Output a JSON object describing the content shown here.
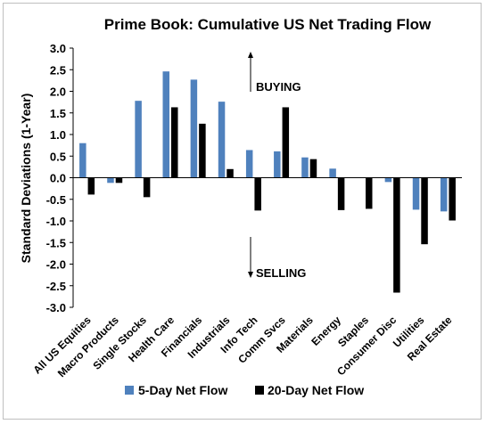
{
  "chart_data": {
    "type": "bar",
    "title": "Prime Book: Cumulative US Net Trading Flow",
    "ylabel": "Standard Deviations (1-Year)",
    "xlabel": "",
    "ylim": [
      -3.0,
      3.0
    ],
    "yticks": [
      "3.0",
      "2.5",
      "2.0",
      "1.5",
      "1.0",
      "0.5",
      "0.0",
      "-0.5",
      "-1.0",
      "-1.5",
      "-2.0",
      "-2.5",
      "-3.0"
    ],
    "categories": [
      "All US Equities",
      "Macro Products",
      "Single Stocks",
      "Health Care",
      "Financials",
      "Industrials",
      "Info Tech",
      "Comm Svcs",
      "Materials",
      "Energy",
      "Staples",
      "Consumer Disc",
      "Utilities",
      "Real Estate"
    ],
    "series": [
      {
        "name": "5-Day Net Flow",
        "color": "#4f81bd",
        "values": [
          0.8,
          -0.12,
          1.78,
          2.46,
          2.27,
          1.76,
          0.64,
          0.61,
          0.47,
          0.21,
          0.0,
          -0.1,
          -0.74,
          -0.78
        ]
      },
      {
        "name": "20-Day Net Flow",
        "color": "#000000",
        "values": [
          -0.39,
          -0.12,
          -0.45,
          1.63,
          1.25,
          0.2,
          -0.76,
          1.63,
          0.43,
          -0.75,
          -0.72,
          -2.66,
          -1.54,
          -0.99
        ]
      }
    ],
    "annotations": [
      {
        "text": "BUYING",
        "arrow": "up"
      },
      {
        "text": "SELLING",
        "arrow": "down"
      }
    ],
    "legend_position": "bottom",
    "grid": false
  }
}
